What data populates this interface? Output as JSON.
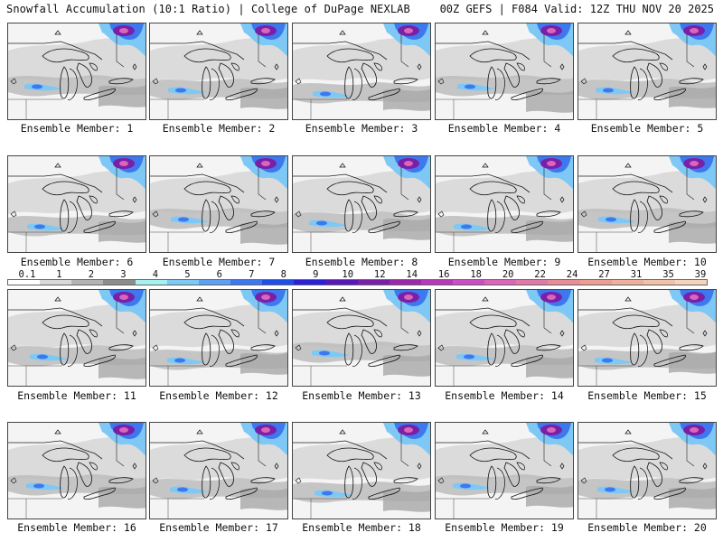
{
  "header": {
    "title_left": "Snowfall Accumulation (10:1 Ratio) | College of DuPage NEXLAB",
    "title_right": "00Z GEFS | F084 Valid: 12Z THU NOV 20 2025"
  },
  "colorbar": {
    "ticks": [
      "0.1",
      "1",
      "2",
      "3",
      "4",
      "5",
      "6",
      "7",
      "8",
      "9",
      "10",
      "12",
      "14",
      "16",
      "18",
      "20",
      "22",
      "24",
      "27",
      "31",
      "35",
      "39"
    ],
    "colors": [
      "#ffffff",
      "#d9d9d9",
      "#b3b3b3",
      "#8c8c8c",
      "#a6f0f0",
      "#7ec8f5",
      "#5fa0f2",
      "#3d78ee",
      "#1f4fe8",
      "#2a20d8",
      "#5a17b8",
      "#7a1fa8",
      "#9a2aa8",
      "#b53ab8",
      "#c84fc4",
      "#d966b8",
      "#e07aa8",
      "#e68d98",
      "#ea9f90",
      "#eeb09a",
      "#f2c2a8",
      "#f6d4bc"
    ]
  },
  "members": [
    {
      "label": "Ensemble Member: 1"
    },
    {
      "label": "Ensemble Member: 2"
    },
    {
      "label": "Ensemble Member: 3"
    },
    {
      "label": "Ensemble Member: 4"
    },
    {
      "label": "Ensemble Member: 5"
    },
    {
      "label": "Ensemble Member: 6"
    },
    {
      "label": "Ensemble Member: 7"
    },
    {
      "label": "Ensemble Member: 8"
    },
    {
      "label": "Ensemble Member: 9"
    },
    {
      "label": "Ensemble Member: 10"
    },
    {
      "label": "Ensemble Member: 11"
    },
    {
      "label": "Ensemble Member: 12"
    },
    {
      "label": "Ensemble Member: 13"
    },
    {
      "label": "Ensemble Member: 14"
    },
    {
      "label": "Ensemble Member: 15"
    },
    {
      "label": "Ensemble Member: 16"
    },
    {
      "label": "Ensemble Member: 17"
    },
    {
      "label": "Ensemble Member: 18"
    },
    {
      "label": "Ensemble Member: 19"
    },
    {
      "label": "Ensemble Member: 20"
    }
  ]
}
